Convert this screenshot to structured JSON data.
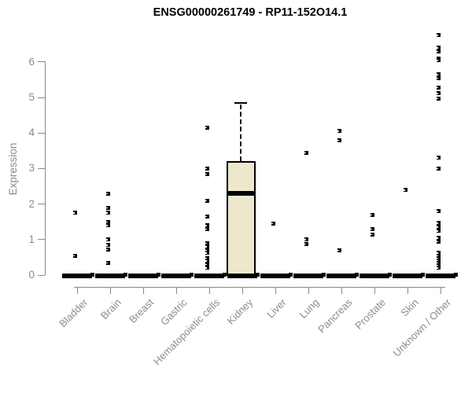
{
  "chart_data": {
    "type": "boxplot",
    "title": "ENSG00000261749 - RP11-152O14.1",
    "xlabel": "",
    "ylabel": "Expression",
    "ylim": [
      0,
      6.9
    ],
    "y_ticks": [
      0,
      1,
      2,
      3,
      4,
      5,
      6
    ],
    "grid": false,
    "legend": null,
    "categories": [
      "Bladder",
      "Brain",
      "Breast",
      "Gastric",
      "Hematopoietic cells",
      "Kidney",
      "Liver",
      "Lung",
      "Pancreas",
      "Prostate",
      "Skin",
      "Unknown / Other"
    ],
    "zero_median_bar": [
      true,
      true,
      true,
      true,
      true,
      true,
      true,
      true,
      true,
      true,
      true,
      true
    ],
    "points": [
      [
        1.75,
        0.55
      ],
      [
        2.3,
        1.9,
        1.75,
        1.5,
        1.4,
        1.0,
        0.85,
        0.72,
        0.35
      ],
      [],
      [],
      [
        4.15,
        3.0,
        2.85,
        2.1,
        1.65,
        1.4,
        1.3,
        0.9,
        0.8,
        0.7,
        0.62,
        0.48,
        0.4,
        0.3,
        0.2
      ],
      [],
      [
        1.45
      ],
      [
        3.45,
        1.0,
        0.88
      ],
      [
        4.05,
        3.8,
        0.7
      ],
      [
        1.7,
        1.3,
        1.15
      ],
      [
        2.4
      ],
      [
        6.75,
        6.4,
        6.3,
        6.1,
        6.05,
        5.65,
        5.55,
        5.28,
        5.12,
        4.97,
        3.3,
        3.0,
        1.8,
        1.47,
        1.35,
        1.25,
        1.05,
        0.95,
        0.62,
        0.55,
        0.48,
        0.42,
        0.35,
        0.28,
        0.2
      ]
    ],
    "boxes": [
      {
        "category": "Kidney",
        "q1": 0,
        "median": 2.3,
        "q3": 3.2,
        "whisker_low": 0,
        "whisker_high": 4.85
      }
    ],
    "colors": {
      "box_fill": "#ece7cd",
      "box_border": "#000000",
      "point": "#000000",
      "axis": "#888888",
      "tick_label": "#8c8c8c",
      "title": "#000000"
    }
  }
}
